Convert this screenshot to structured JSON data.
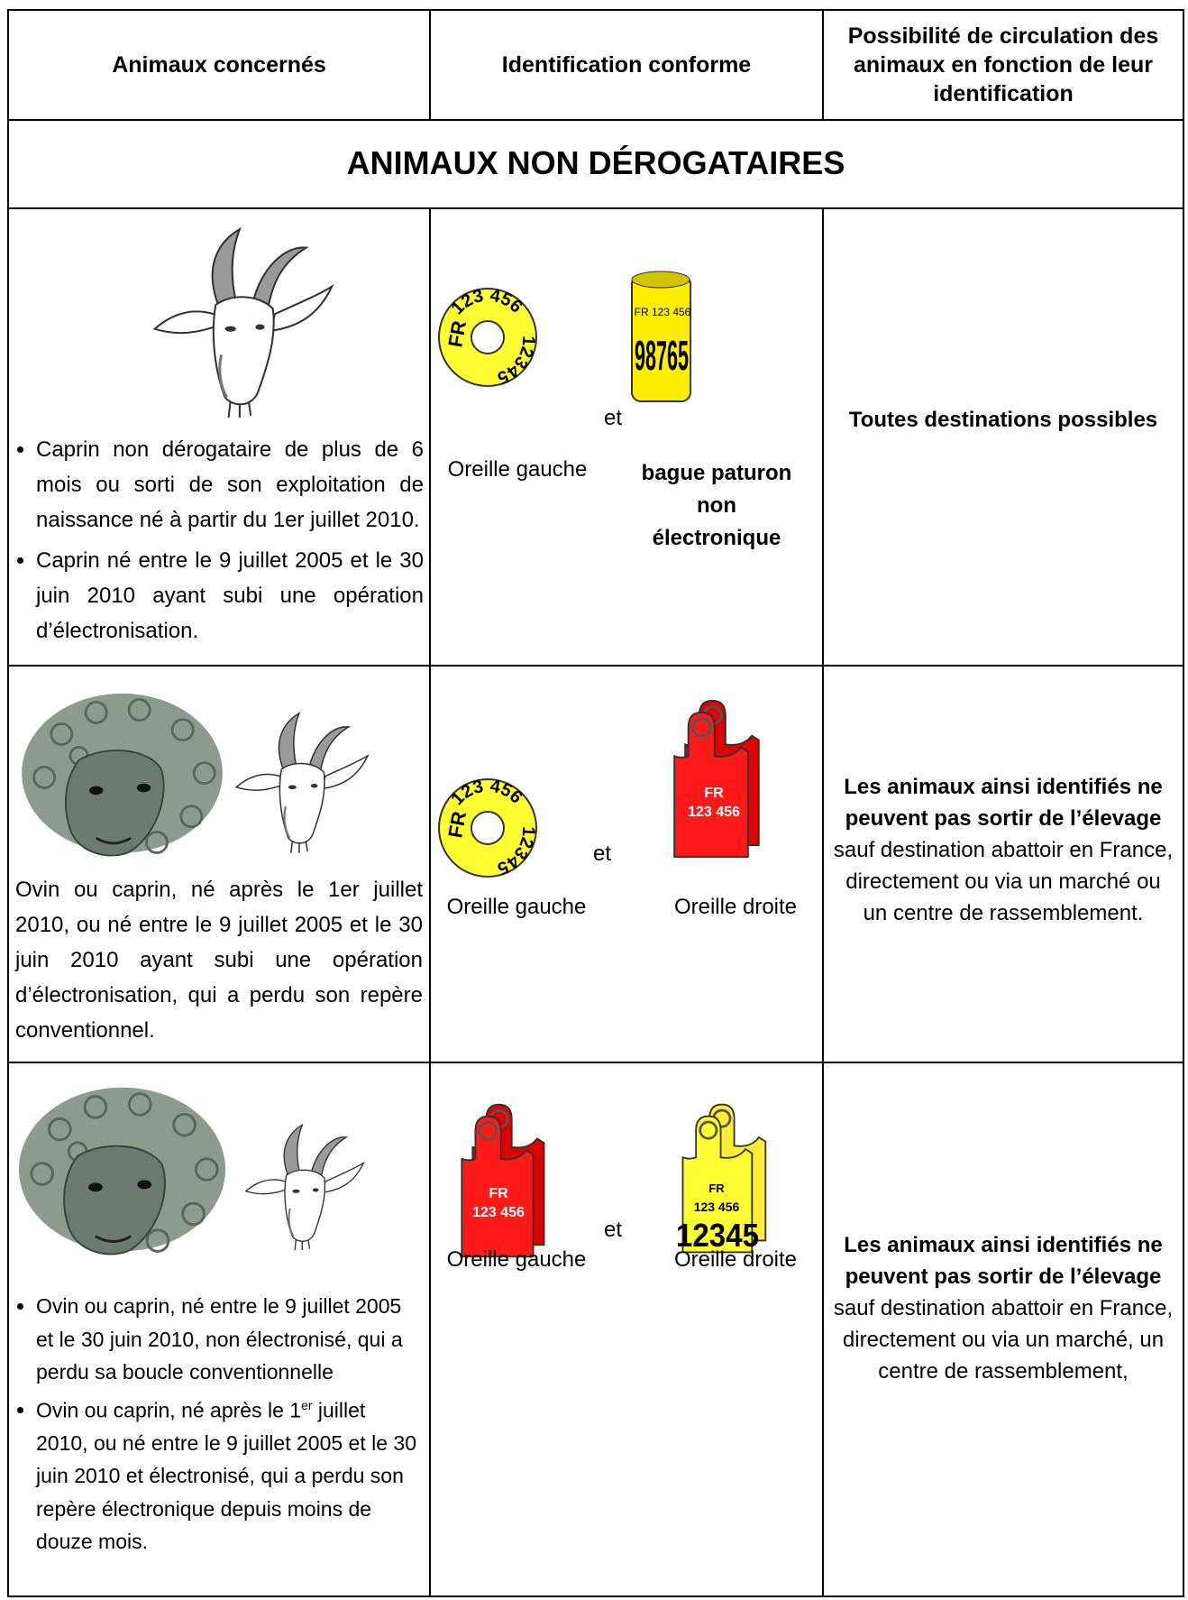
{
  "header": {
    "columns": [
      "Animaux concernés",
      "Identification conforme",
      "Possibilité de circulation des animaux en fonction de leur identification"
    ]
  },
  "section_title": "ANIMAUX NON DÉROGATAIRES",
  "rows": [
    {
      "animals": {
        "bullets": [
          "Caprin non dérogataire de plus de 6 mois ou sorti de son exploitation de naissance né à partir du 1er juillet 2010.",
          "Caprin né entre le 9 juillet 2005 et le 30 juin 2010 ayant subi une opération d’électronisation."
        ]
      },
      "identification": {
        "round_tag": {
          "country": "FR",
          "number": "123 456",
          "work_number": "12345"
        },
        "connector": "et",
        "ring_tag": {
          "number": "FR 123 456",
          "work_number": "98765"
        },
        "left_label": "Oreille gauche",
        "right_label": "bague paturon non électronique"
      },
      "circulation": {
        "bold": "Toutes destinations possibles"
      }
    },
    {
      "animals": {
        "text": "Ovin ou caprin, né après le 1er juillet 2010, ou né entre le 9 juillet 2005 et le 30 juin 2010 ayant subi une opération d’électronisation, qui a perdu son repère conventionnel."
      },
      "identification": {
        "round_tag": {
          "country": "FR",
          "number": "123 456",
          "work_number": "12345"
        },
        "connector": "et",
        "red_tag": {
          "country": "FR",
          "number": "123 456"
        },
        "left_label": "Oreille gauche",
        "right_label": "Oreille droite"
      },
      "circulation": {
        "bold": "Les animaux ainsi identifiés ne peuvent pas sortir de l’élevage",
        "normal": " sauf destination abattoir en France, directement ou via un marché ou un centre de rassemblement."
      }
    },
    {
      "animals": {
        "bullets": [
          "Ovin ou caprin, né entre le 9 juillet 2005 et le 30 juin 2010, non électronisé, qui a perdu sa boucle conventionnelle",
          {
            "before": "Ovin ou caprin, né après le 1",
            "superscript": "er",
            "after": " juillet 2010, ou né entre le 9 juillet 2005 et le 30 juin 2010 et électronisé, qui a perdu son repère électronique depuis moins de douze mois."
          }
        ]
      },
      "identification": {
        "red_tag": {
          "country": "FR",
          "number": "123 456"
        },
        "connector": "et",
        "yellow_tag": {
          "country": "FR",
          "number": "123 456",
          "work_number": "12345"
        },
        "left_label": "Oreille gauche",
        "right_label": "Oreille droite"
      },
      "circulation": {
        "bold": "Les animaux ainsi identifiés ne peuvent pas sortir de l’élevage",
        "normal": " sauf destination abattoir en France, directement ou via un marché, un centre de rassemblement,"
      }
    }
  ]
}
